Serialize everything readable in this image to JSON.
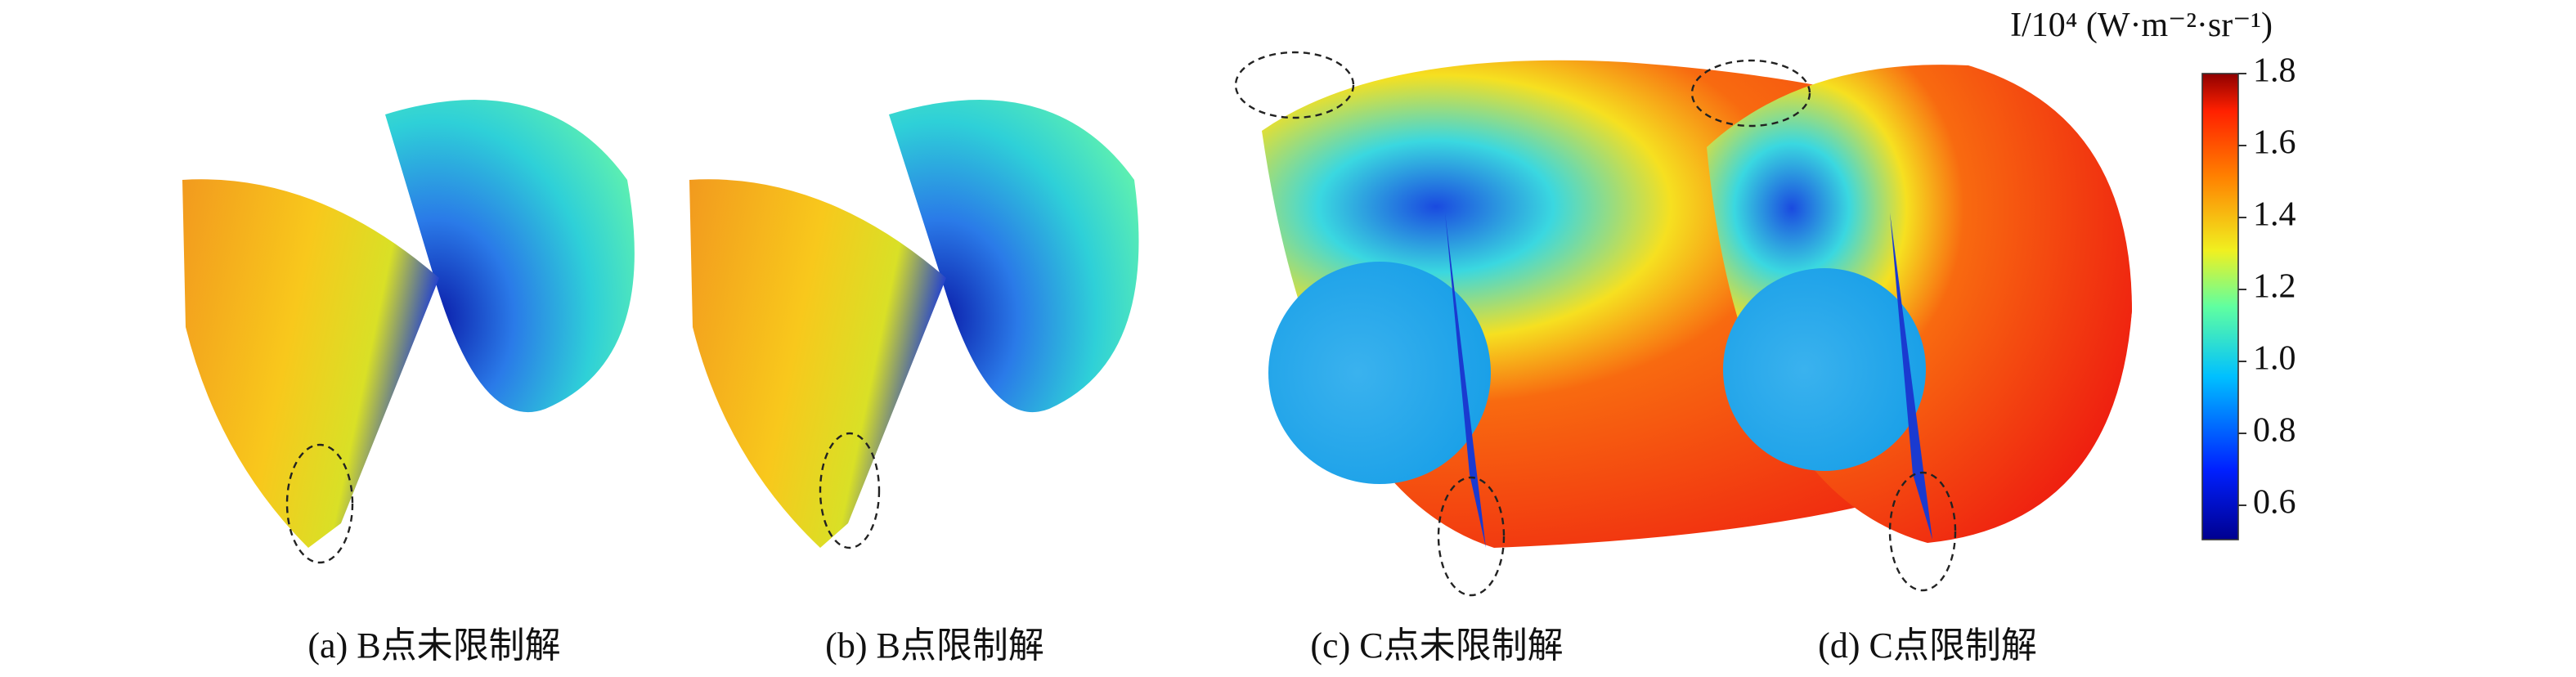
{
  "panels": [
    {
      "caption": "(a) B点未限制解"
    },
    {
      "caption": "(b) B点限制解"
    },
    {
      "caption": "(c) C点未限制解"
    },
    {
      "caption": "(d) C点限制解"
    }
  ],
  "colorbar": {
    "label": "I/10⁴ (W·m⁻²·sr⁻¹)",
    "ticks": [
      "1.8",
      "1.6",
      "1.4",
      "1.2",
      "1.0",
      "0.8",
      "0.6"
    ]
  }
}
